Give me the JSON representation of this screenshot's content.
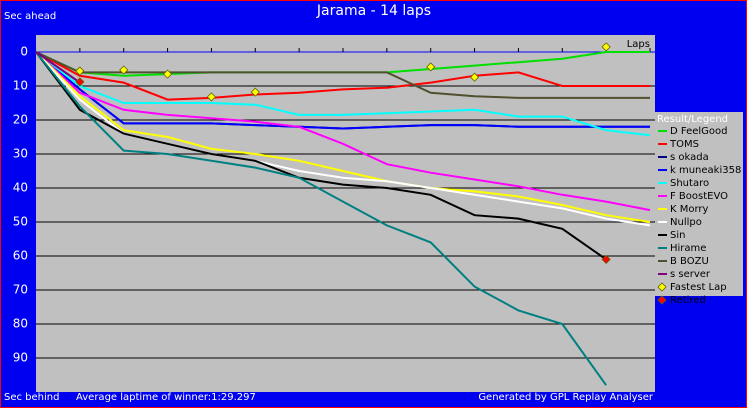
{
  "chart_data": {
    "type": "line",
    "title": "Jarama - 14 laps",
    "y_label_top": "Sec ahead",
    "y_label_bottom": "Sec behind",
    "x_label": "Laps",
    "footer_left": "Average laptime of winner:1:29.297",
    "footer_right": "Generated by GPL Replay Analyser",
    "legend_title": "Result/Legend",
    "x": [
      0,
      1,
      2,
      3,
      4,
      5,
      6,
      7,
      8,
      9,
      10,
      11,
      12,
      13,
      14
    ],
    "xlim": [
      0,
      14
    ],
    "ylim": [
      -5,
      100
    ],
    "yticks": [
      0,
      10,
      20,
      30,
      40,
      50,
      60,
      70,
      80,
      90
    ],
    "y_reversed": true,
    "grid": true,
    "series": [
      {
        "name": "D FeelGood",
        "color": "#00e000",
        "values": [
          0,
          6,
          7,
          6.5,
          6,
          6,
          6,
          6,
          6,
          5,
          4,
          3,
          2,
          0,
          0
        ]
      },
      {
        "name": "TOMS",
        "color": "#ff0000",
        "values": [
          0,
          7,
          9,
          14,
          13.5,
          12.5,
          12,
          11,
          10.5,
          9,
          7,
          6,
          10,
          10,
          10
        ]
      },
      {
        "name": "s okada",
        "color": "#000080",
        "values": [
          0,
          11,
          21,
          21,
          21,
          21.5,
          22,
          22.5,
          22,
          21.5,
          21.5,
          22,
          22,
          22,
          22
        ]
      },
      {
        "name": "k muneaki358",
        "color": "#0000ff",
        "values": [
          0,
          11,
          21,
          21,
          21,
          21.5,
          22,
          22.5,
          22,
          21.5,
          21.5,
          22,
          22,
          22,
          22
        ]
      },
      {
        "name": "Shutaro",
        "color": "#00ffff",
        "values": [
          0,
          10,
          15,
          15,
          15,
          15.5,
          18.5,
          18.5,
          18,
          17.5,
          17,
          19,
          19,
          23,
          24.5
        ]
      },
      {
        "name": "F BoostEVO",
        "color": "#ff00ff",
        "values": [
          0,
          12,
          17,
          18.5,
          19.5,
          20.5,
          22,
          27,
          33,
          35.5,
          37.5,
          39.5,
          42,
          44,
          46.5
        ]
      },
      {
        "name": "K Morry",
        "color": "#ffff00",
        "values": [
          0,
          13,
          23,
          25,
          28.5,
          30,
          32,
          35,
          38,
          40,
          41,
          42.5,
          45,
          48,
          50
        ]
      },
      {
        "name": "Nullpo",
        "color": "#ffffff",
        "values": [
          0,
          14,
          24,
          27,
          30,
          32,
          35,
          37,
          38,
          40,
          42,
          44,
          46,
          49,
          51
        ]
      },
      {
        "name": "Sin",
        "color": "#000000",
        "values": [
          0,
          17,
          24,
          27,
          30,
          32,
          37,
          39,
          40,
          42,
          48,
          49,
          52,
          61,
          null
        ]
      },
      {
        "name": "Hirame",
        "color": "#008080",
        "values": [
          0,
          16,
          29,
          30,
          32,
          34,
          37,
          44,
          51,
          56,
          69,
          76,
          80,
          98,
          null
        ]
      },
      {
        "name": "B BOZU",
        "color": "#505030",
        "values": [
          0,
          6,
          6,
          6,
          6,
          6,
          6,
          6,
          6,
          12,
          13,
          13.5,
          13.5,
          13.5,
          13.5
        ]
      },
      {
        "name": "s server",
        "color": "#800080",
        "values": [
          0,
          9,
          null,
          null,
          null,
          null,
          null,
          null,
          null,
          null,
          null,
          null,
          null,
          null,
          null
        ]
      }
    ],
    "markers": [
      {
        "name": "Fastest Lap",
        "color": "#ffff00",
        "x": [
          1,
          2,
          3,
          4,
          5,
          9,
          10,
          13
        ],
        "values": [
          5.6,
          5.3,
          6.5,
          13.2,
          11.8,
          4.4,
          7.4,
          -1.5
        ]
      },
      {
        "name": "Retired",
        "color": "#ff0000",
        "x": [
          1,
          13
        ],
        "values": [
          8.8,
          61
        ]
      }
    ]
  }
}
